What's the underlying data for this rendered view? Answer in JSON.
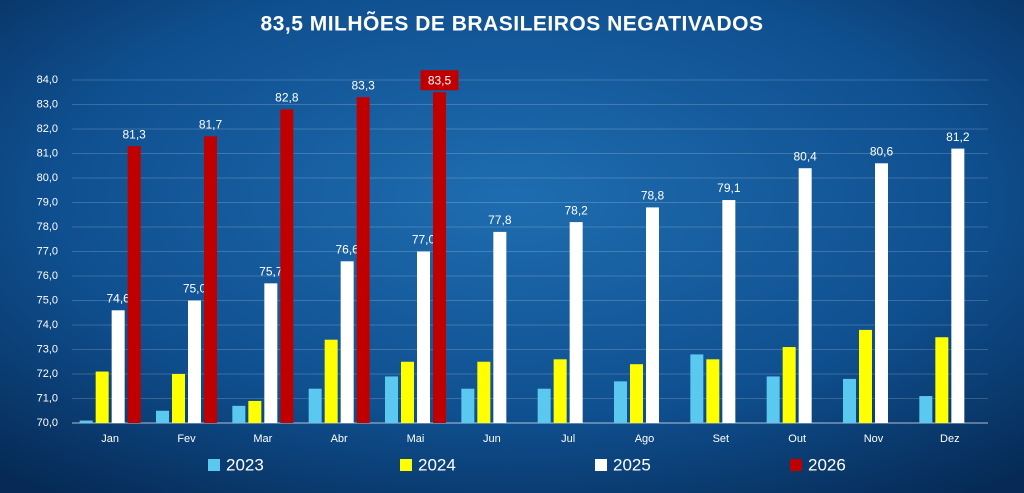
{
  "chart_data": {
    "type": "bar",
    "title": "83,5 MILHÕES DE BRASILEIROS NEGATIVADOS",
    "categories": [
      "Jan",
      "Fev",
      "Mar",
      "Abr",
      "Mai",
      "Jun",
      "Jul",
      "Ago",
      "Set",
      "Out",
      "Nov",
      "Dez"
    ],
    "series": [
      {
        "name": "2023",
        "color": "#5bc8f0",
        "values": [
          70.1,
          70.5,
          70.7,
          71.4,
          71.9,
          71.4,
          71.4,
          71.7,
          72.8,
          71.9,
          71.8,
          71.1
        ]
      },
      {
        "name": "2024",
        "color": "#ffff00",
        "values": [
          72.1,
          72.0,
          70.9,
          73.4,
          72.5,
          72.5,
          72.6,
          72.4,
          72.6,
          73.1,
          73.8,
          73.5
        ]
      },
      {
        "name": "2025",
        "color": "#ffffff",
        "values": [
          74.6,
          75.0,
          75.7,
          76.6,
          77.0,
          77.8,
          78.2,
          78.8,
          79.1,
          80.4,
          80.6,
          81.2
        ],
        "value_labels": [
          "74,6",
          "75,0",
          "75,7",
          "76,6",
          "77,0",
          "77,8",
          "78,2",
          "78,8",
          "79,1",
          "80,4",
          "80,6",
          "81,2"
        ]
      },
      {
        "name": "2026",
        "color": "#c00000",
        "values": [
          81.3,
          81.7,
          82.8,
          83.3,
          83.5,
          null,
          null,
          null,
          null,
          null,
          null,
          null
        ],
        "value_labels": [
          "81,3",
          "81,7",
          "82,8",
          "83,3",
          "83,5",
          null,
          null,
          null,
          null,
          null,
          null,
          null
        ]
      }
    ],
    "ylim": [
      70,
      84
    ],
    "yticks": [
      {
        "value": 70,
        "label": "70,0"
      },
      {
        "value": 71,
        "label": "71,0"
      },
      {
        "value": 72,
        "label": "72,0"
      },
      {
        "value": 73,
        "label": "73,0"
      },
      {
        "value": 74,
        "label": "74,0"
      },
      {
        "value": 75,
        "label": "75,0"
      },
      {
        "value": 76,
        "label": "76,0"
      },
      {
        "value": 77,
        "label": "77,0"
      },
      {
        "value": 78,
        "label": "78,0"
      },
      {
        "value": 79,
        "label": "79,0"
      },
      {
        "value": 80,
        "label": "80,0"
      },
      {
        "value": 81,
        "label": "81,0"
      },
      {
        "value": 82,
        "label": "82,0"
      },
      {
        "value": 83,
        "label": "83,0"
      },
      {
        "value": 84,
        "label": "84,0"
      }
    ],
    "grid": true
  }
}
